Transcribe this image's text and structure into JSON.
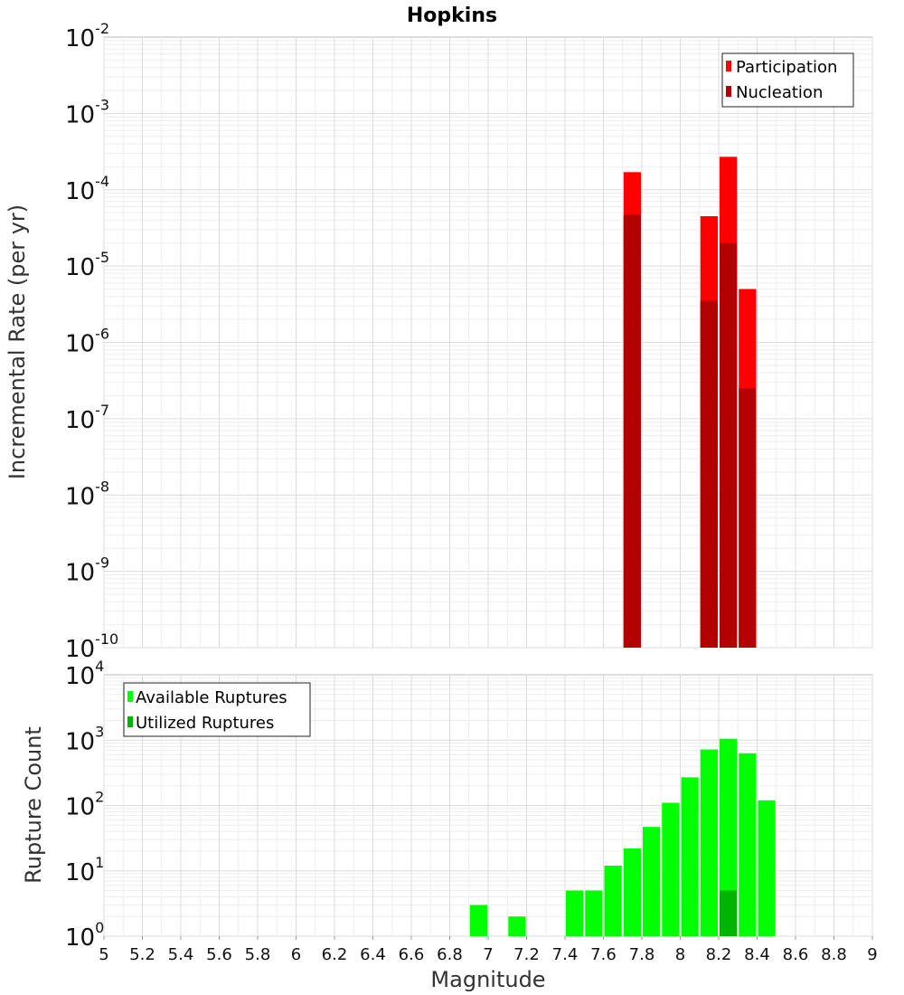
{
  "chart_data": [
    {
      "type": "bar",
      "title": "Hopkins",
      "xlabel": "Magnitude",
      "ylabel": "Incremental Rate (per yr)",
      "yscale": "log",
      "ylim_exp": [
        -10,
        -2
      ],
      "xlim": [
        5,
        9
      ],
      "bin_width": 0.1,
      "legend_position": "top-right",
      "grid": true,
      "series": [
        {
          "name": "Participation",
          "color": "#ff0000",
          "x": [
            7.75,
            8.15,
            8.25,
            8.35
          ],
          "values": [
            0.00017,
            4.5e-05,
            0.00027,
            5e-06
          ]
        },
        {
          "name": "Nucleation",
          "color": "#b30000",
          "x": [
            7.75,
            8.15,
            8.25,
            8.35
          ],
          "values": [
            4.7e-05,
            3.5e-06,
            2e-05,
            2.5e-07
          ]
        }
      ]
    },
    {
      "type": "bar",
      "xlabel": "Magnitude",
      "ylabel": "Rupture Count",
      "yscale": "log",
      "ylim_exp": [
        0,
        4
      ],
      "xlim": [
        5,
        9
      ],
      "bin_width": 0.1,
      "legend_position": "top-left",
      "grid": true,
      "series": [
        {
          "name": "Available Ruptures",
          "color": "#00ff00",
          "x": [
            6.95,
            7.15,
            7.25,
            7.35,
            7.45,
            7.55,
            7.65,
            7.75,
            7.85,
            7.95,
            8.05,
            8.15,
            8.25,
            8.35,
            8.45
          ],
          "values": [
            3,
            2,
            1,
            1,
            5,
            5,
            12,
            22,
            47,
            110,
            270,
            720,
            1050,
            630,
            120
          ]
        },
        {
          "name": "Utilized Ruptures",
          "color": "#00b300",
          "x": [
            7.75,
            8.15,
            8.25,
            8.35
          ],
          "values": [
            1,
            1,
            5,
            1
          ]
        }
      ]
    }
  ],
  "x_ticks": [
    "5",
    "5.2",
    "5.4",
    "5.6",
    "5.8",
    "6",
    "6.2",
    "6.4",
    "6.6",
    "6.8",
    "7",
    "7.2",
    "7.4",
    "7.6",
    "7.8",
    "8",
    "8.2",
    "8.4",
    "8.6",
    "8.8",
    "9"
  ],
  "top_y_ticks": [
    {
      "base": "10",
      "exp": "-2"
    },
    {
      "base": "10",
      "exp": "-3"
    },
    {
      "base": "10",
      "exp": "-4"
    },
    {
      "base": "10",
      "exp": "-5"
    },
    {
      "base": "10",
      "exp": "-6"
    },
    {
      "base": "10",
      "exp": "-7"
    },
    {
      "base": "10",
      "exp": "-8"
    },
    {
      "base": "10",
      "exp": "-9"
    },
    {
      "base": "10",
      "exp": "-10"
    }
  ],
  "bottom_y_ticks": [
    {
      "base": "10",
      "exp": "4"
    },
    {
      "base": "10",
      "exp": "3"
    },
    {
      "base": "10",
      "exp": "2"
    },
    {
      "base": "10",
      "exp": "1"
    },
    {
      "base": "10",
      "exp": "0"
    }
  ]
}
